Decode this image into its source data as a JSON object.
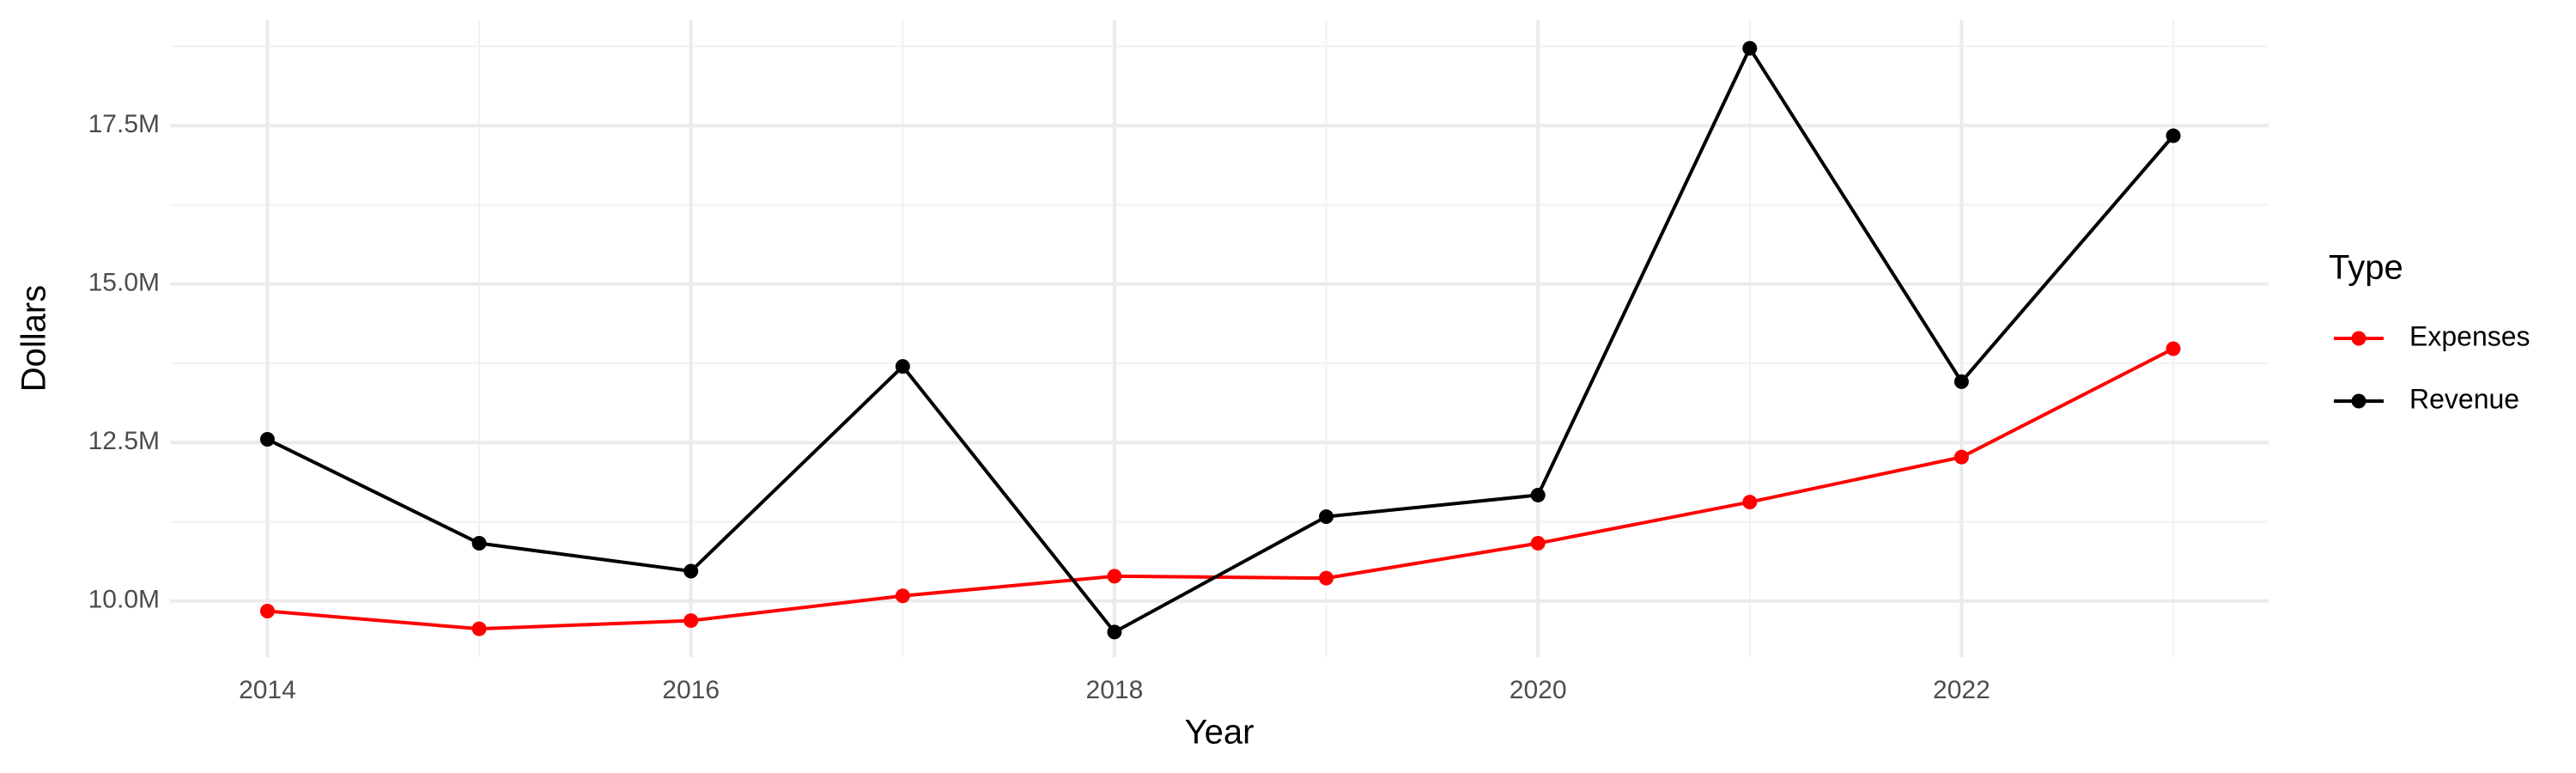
{
  "chart_data": {
    "type": "line",
    "x_label": "Year",
    "y_label": "Dollars",
    "legend_title": "Type",
    "x": [
      2014,
      2015,
      2016,
      2017,
      2018,
      2019,
      2020,
      2021,
      2022,
      2023
    ],
    "series": [
      {
        "name": "Expenses",
        "color": "#ff0000",
        "values": [
          9840000,
          9560000,
          9690000,
          10080000,
          10390000,
          10360000,
          10910000,
          11560000,
          12270000,
          13980000
        ]
      },
      {
        "name": "Revenue",
        "color": "#000000",
        "values": [
          12550000,
          10910000,
          10470000,
          13700000,
          9510000,
          11330000,
          11670000,
          18720000,
          13460000,
          17340000
        ]
      }
    ],
    "xlim": [
      2013.54,
      2023.45
    ],
    "ylim": [
      9115000,
      19170000
    ],
    "xticks": [
      2014,
      2016,
      2018,
      2020,
      2022
    ],
    "yticks": [
      {
        "value": 10000000,
        "label": "10.0M"
      },
      {
        "value": 12500000,
        "label": "12.5M"
      },
      {
        "value": 15000000,
        "label": "15.0M"
      },
      {
        "value": 17500000,
        "label": "17.5M"
      }
    ],
    "xminorticks": [
      2015,
      2017,
      2019,
      2021,
      2023
    ],
    "yminorticks": [
      11250000,
      13750000,
      16250000,
      18750000
    ],
    "grid": true,
    "legend": "right"
  }
}
